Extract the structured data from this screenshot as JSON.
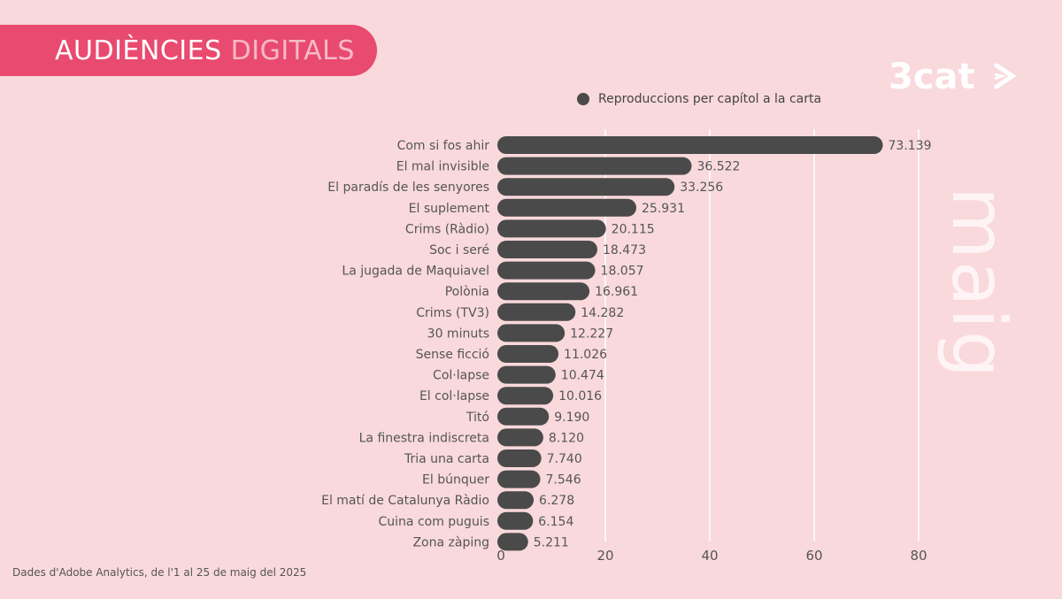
{
  "header": {
    "title_main": "AUDIÈNCIES",
    "title_sub": "DIGITALS",
    "logo_text": "3cat",
    "month": "maig"
  },
  "colors": {
    "background": "#f9d9dc",
    "title_bg": "#e94a6f",
    "bar": "#4a4a4a",
    "gridline": "#ffffff"
  },
  "icons": {
    "logo": "3cat-logo-icon",
    "legend": "legend-dot-icon"
  },
  "chart_data": {
    "type": "bar",
    "orientation": "horizontal",
    "legend": [
      "Reproduccions per capítol a la carta"
    ],
    "legend_position": "top",
    "categories": [
      "Com si fos ahir",
      "El mal invisible",
      "El paradís de les senyores",
      "El suplement",
      "Crims (Ràdio)",
      "Soc i seré",
      "La jugada de Maquiavel",
      "Polònia",
      "Crims (TV3)",
      "30 minuts",
      "Sense ficció",
      "Col·lapse",
      "El col·lapse",
      "Titó",
      "La finestra indiscreta",
      "Tria una carta",
      "El búnquer",
      "El matí de Catalunya Ràdio",
      "Cuina com puguis",
      "Zona zàping"
    ],
    "values": [
      73.139,
      36.522,
      33.256,
      25.931,
      20.115,
      18.473,
      18.057,
      16.961,
      14.282,
      12.227,
      11.026,
      10.474,
      10.016,
      9.19,
      8.12,
      7.74,
      7.546,
      6.278,
      6.154,
      5.211
    ],
    "value_labels": [
      "73.139",
      "36.522",
      "33.256",
      "25.931",
      "20.115",
      "18.473",
      "18.057",
      "16.961",
      "14.282",
      "12.227",
      "11.026",
      "10.474",
      "10.016",
      "9.190",
      "8.120",
      "7.740",
      "7.546",
      "6.278",
      "6.154",
      "5.211"
    ],
    "x_ticks": [
      "0",
      "20",
      "40",
      "60",
      "80"
    ],
    "xlim": [
      0,
      80
    ],
    "grid": true
  },
  "footer": {
    "source": "Dades d'Adobe Analytics, de l'1 al 25 de maig  del 2025"
  }
}
